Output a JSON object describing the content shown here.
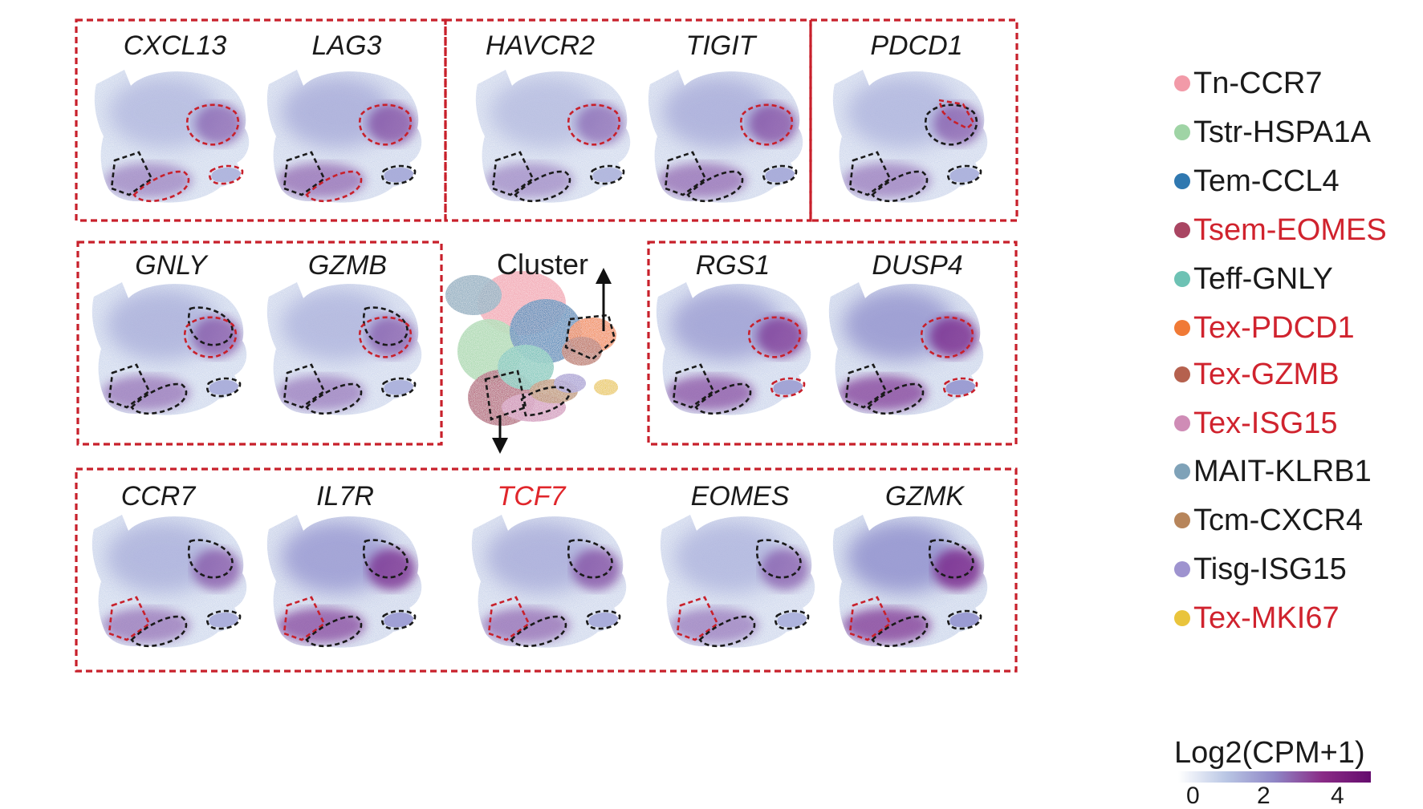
{
  "panels": [
    {
      "id": "cxcl13",
      "label": "CXCL13",
      "label_color": "#1a1a1a",
      "intensity": 0.45
    },
    {
      "id": "lag3",
      "label": "LAG3",
      "label_color": "#1a1a1a",
      "intensity": 0.6
    },
    {
      "id": "havcr2",
      "label": "HAVCR2",
      "label_color": "#1a1a1a",
      "intensity": 0.4
    },
    {
      "id": "tigit",
      "label": "TIGIT",
      "label_color": "#1a1a1a",
      "intensity": 0.6
    },
    {
      "id": "pdcd1",
      "label": "PDCD1",
      "label_color": "#1a1a1a",
      "intensity": 0.5
    },
    {
      "id": "gnly",
      "label": "GNLY",
      "label_color": "#1a1a1a",
      "intensity": 0.55
    },
    {
      "id": "gzmb",
      "label": "GZMB",
      "label_color": "#1a1a1a",
      "intensity": 0.5
    },
    {
      "id": "rgs1",
      "label": "RGS1",
      "label_color": "#1a1a1a",
      "intensity": 0.75
    },
    {
      "id": "dusp4",
      "label": "DUSP4",
      "label_color": "#1a1a1a",
      "intensity": 0.85
    },
    {
      "id": "ccr7",
      "label": "CCR7",
      "label_color": "#1a1a1a",
      "intensity": 0.55
    },
    {
      "id": "il7r",
      "label": "IL7R",
      "label_color": "#1a1a1a",
      "intensity": 0.8
    },
    {
      "id": "tcf7",
      "label": "TCF7",
      "label_color": "#e0262b",
      "intensity": 0.6
    },
    {
      "id": "eomes",
      "label": "EOMES",
      "label_color": "#1a1a1a",
      "intensity": 0.5
    },
    {
      "id": "gzmk",
      "label": "GZMK",
      "label_color": "#1a1a1a",
      "intensity": 0.9
    }
  ],
  "cluster_panel": {
    "label": "Cluster"
  },
  "legend": {
    "items": [
      {
        "label": "Tn-CCR7",
        "color": "#f29aa8",
        "text_color": "#1a1a1a"
      },
      {
        "label": "Tstr-HSPA1A",
        "color": "#9fd4a5",
        "text_color": "#1a1a1a"
      },
      {
        "label": "Tem-CCL4",
        "color": "#2f78b0",
        "text_color": "#1a1a1a"
      },
      {
        "label": "Tsem-EOMES",
        "color": "#a94562",
        "text_color": "#d0232e"
      },
      {
        "label": "Teff-GNLY",
        "color": "#6dc2b4",
        "text_color": "#1a1a1a"
      },
      {
        "label": "Tex-PDCD1",
        "color": "#f07a36",
        "text_color": "#d0232e"
      },
      {
        "label": "Tex-GZMB",
        "color": "#b5614e",
        "text_color": "#d0232e"
      },
      {
        "label": "Tex-ISG15",
        "color": "#cf8cb6",
        "text_color": "#d0232e"
      },
      {
        "label": "MAIT-KLRB1",
        "color": "#7fa2b8",
        "text_color": "#1a1a1a"
      },
      {
        "label": "Tcm-CXCR4",
        "color": "#b7855b",
        "text_color": "#1a1a1a"
      },
      {
        "label": "Tisg-ISG15",
        "color": "#9e93cf",
        "text_color": "#1a1a1a"
      },
      {
        "label": "Tex-MKI67",
        "color": "#e9c43c",
        "text_color": "#d0232e"
      }
    ]
  },
  "colorscale": {
    "title": "Log2(CPM+1)",
    "ticks": [
      "0",
      "2",
      "4"
    ],
    "colors": [
      "#ffffff",
      "#b9c6e4",
      "#8f86c6",
      "#8a2b86",
      "#650c6e"
    ]
  },
  "colors": {
    "box_red": "#c8202b",
    "outline_dark": "#1a1a1a",
    "low": "#c4cfe8",
    "mid": "#8e8ccb",
    "high": "#7a2388"
  }
}
